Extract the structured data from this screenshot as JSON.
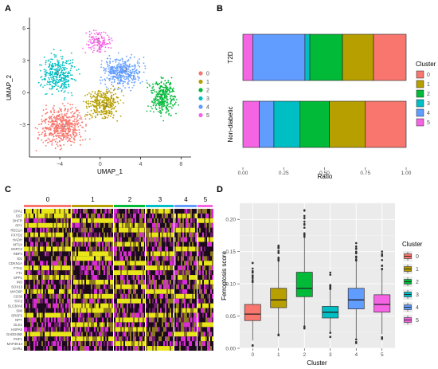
{
  "panels": {
    "A": {
      "letter": "A"
    },
    "B": {
      "letter": "B"
    },
    "C": {
      "letter": "C"
    },
    "D": {
      "letter": "D"
    }
  },
  "colors": {
    "0": "#F8766D",
    "1": "#B79F00",
    "2": "#00BA38",
    "3": "#00BFC4",
    "4": "#619CFF",
    "5": "#F564E3"
  },
  "chart_data": [
    {
      "type": "scatter",
      "panel": "A",
      "xlabel": "UMAP_1",
      "ylabel": "UMAP_2",
      "xticks": [
        -4,
        0,
        4,
        8
      ],
      "yticks": [
        -3,
        0,
        3,
        6
      ],
      "xlim": [
        -7,
        9
      ],
      "ylim": [
        -6,
        7
      ],
      "legend": {
        "entries": [
          "0",
          "1",
          "2",
          "3",
          "4",
          "5"
        ],
        "placement": "right"
      },
      "cluster_labels": [
        {
          "label": "0",
          "x": -3.6,
          "y": -3.3
        },
        {
          "label": "1",
          "x": 0.6,
          "y": -1.3
        },
        {
          "label": "2",
          "x": 2.5,
          "y": 2.0
        },
        {
          "label": "3",
          "x": -4.2,
          "y": 1.7
        },
        {
          "label": "4",
          "x": 6.0,
          "y": -0.5
        },
        {
          "label": "5",
          "x": -0.2,
          "y": 4.7
        }
      ]
    },
    {
      "type": "bar",
      "panel": "B",
      "stacked": true,
      "orientation": "horizontal",
      "categories": [
        "T2D",
        "Non-diabetic"
      ],
      "xlabel": "Ratio",
      "xticks": [
        "0.00",
        "0.25",
        "0.50",
        "0.75",
        "1.00"
      ],
      "legend_title": "Cluster",
      "series": [
        {
          "name": "5",
          "values": [
            0.06,
            0.1
          ]
        },
        {
          "name": "4",
          "values": [
            0.32,
            0.09
          ]
        },
        {
          "name": "3",
          "values": [
            0.03,
            0.16
          ]
        },
        {
          "name": "2",
          "values": [
            0.2,
            0.18
          ]
        },
        {
          "name": "1",
          "values": [
            0.19,
            0.22
          ]
        },
        {
          "name": "0",
          "values": [
            0.2,
            0.25
          ]
        }
      ]
    },
    {
      "type": "heatmap",
      "panel": "C",
      "columns": [
        "0",
        "1",
        "2",
        "3",
        "4",
        "5"
      ],
      "genes": [
        "CPA1",
        "SST",
        "DHFR",
        "PPY",
        "REG1A",
        "FXYD2",
        "HADH",
        "MT1X",
        "G6PC2",
        "RBP4",
        "ID1",
        "CDKN1A",
        "FTH1",
        "FTL",
        "SPP1",
        "INS",
        "SOX13",
        "MYO6P",
        "CD36",
        "TFF3",
        "SLC30A8",
        "SIM",
        "SRSF6",
        "NPY",
        "DLK1",
        "HSPA5",
        "GADD45B",
        "PHF1",
        "MAP3K14",
        "GHRL"
      ]
    },
    {
      "type": "box",
      "panel": "D",
      "categories": [
        "0",
        "1",
        "2",
        "3",
        "4",
        "5"
      ],
      "xlabel": "Cluster",
      "ylabel": "Ferroptosis score",
      "yticks": [
        "0.00",
        "0.05",
        "0.10",
        "0.15",
        "0.20"
      ],
      "ylim": [
        0,
        0.225
      ],
      "legend_title": "Cluster",
      "boxes": [
        {
          "name": "0",
          "q1": 0.043,
          "median": 0.053,
          "q3": 0.068,
          "wlo": 0.012,
          "whi": 0.103
        },
        {
          "name": "1",
          "q1": 0.063,
          "median": 0.075,
          "q3": 0.093,
          "wlo": 0.022,
          "whi": 0.136
        },
        {
          "name": "2",
          "q1": 0.08,
          "median": 0.093,
          "q3": 0.118,
          "wlo": 0.035,
          "whi": 0.172
        },
        {
          "name": "3",
          "q1": 0.047,
          "median": 0.056,
          "q3": 0.065,
          "wlo": 0.025,
          "whi": 0.092
        },
        {
          "name": "4",
          "q1": 0.061,
          "median": 0.075,
          "q3": 0.093,
          "wlo": 0.015,
          "whi": 0.135
        },
        {
          "name": "5",
          "q1": 0.056,
          "median": 0.068,
          "q3": 0.083,
          "wlo": 0.022,
          "whi": 0.122
        }
      ]
    }
  ]
}
